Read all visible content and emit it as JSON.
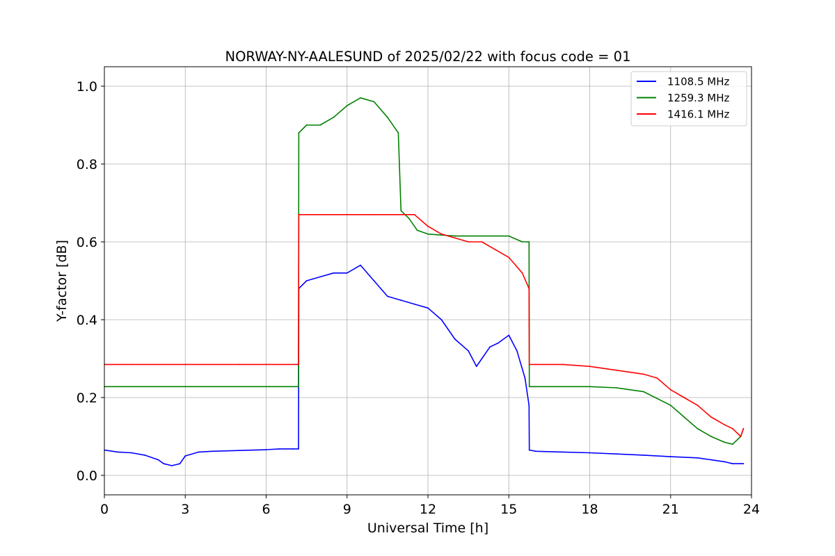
{
  "chart_data": {
    "type": "line",
    "title": "NORWAY-NY-AALESUND of 2025/02/22 with focus code = 01",
    "xlabel": "Universal Time [h]",
    "ylabel": "Y-factor [dB]",
    "xlim": [
      0,
      24
    ],
    "ylim": [
      -0.05,
      1.05
    ],
    "xticks": [
      0,
      3,
      6,
      9,
      12,
      15,
      18,
      21,
      24
    ],
    "yticks": [
      0.0,
      0.2,
      0.4,
      0.6,
      0.8,
      1.0
    ],
    "ytick_labels": [
      "0.0",
      "0.2",
      "0.4",
      "0.6",
      "0.8",
      "1.0"
    ],
    "grid": true,
    "legend_position": "top-right",
    "series": [
      {
        "name": "1108.5 MHz",
        "color": "#0000ff",
        "x": [
          0,
          0.5,
          1,
          1.5,
          2,
          2.2,
          2.5,
          2.8,
          3,
          3.5,
          4,
          5,
          6,
          6.5,
          7,
          7.2,
          7.21,
          7.5,
          8,
          8.5,
          9,
          9.5,
          10,
          10.5,
          11,
          11.5,
          12,
          12.5,
          13,
          13.5,
          13.8,
          14,
          14.3,
          14.6,
          15,
          15.3,
          15.6,
          15.75,
          15.76,
          16,
          17,
          18,
          19,
          20,
          21,
          22,
          22.5,
          23,
          23.3,
          23.6,
          23.7
        ],
        "y": [
          0.065,
          0.06,
          0.058,
          0.052,
          0.04,
          0.03,
          0.025,
          0.03,
          0.05,
          0.06,
          0.062,
          0.064,
          0.066,
          0.068,
          0.068,
          0.068,
          0.48,
          0.5,
          0.51,
          0.52,
          0.52,
          0.54,
          0.5,
          0.46,
          0.45,
          0.44,
          0.43,
          0.4,
          0.35,
          0.32,
          0.28,
          0.3,
          0.33,
          0.34,
          0.36,
          0.32,
          0.25,
          0.18,
          0.065,
          0.062,
          0.06,
          0.058,
          0.055,
          0.052,
          0.048,
          0.045,
          0.04,
          0.035,
          0.03,
          0.03,
          0.03
        ]
      },
      {
        "name": "1259.3 MHz",
        "color": "#008000",
        "x": [
          0,
          1,
          3,
          5,
          7,
          7.2,
          7.21,
          7.5,
          8,
          8.5,
          9,
          9.5,
          10,
          10.5,
          10.9,
          11,
          11.3,
          11.6,
          12,
          13,
          14,
          15,
          15.5,
          15.7,
          15.75,
          15.76,
          16,
          17,
          18,
          19,
          20,
          21,
          21.5,
          22,
          22.5,
          23,
          23.3,
          23.6,
          23.7
        ],
        "y": [
          0.228,
          0.228,
          0.228,
          0.228,
          0.228,
          0.228,
          0.88,
          0.9,
          0.9,
          0.92,
          0.95,
          0.97,
          0.96,
          0.92,
          0.88,
          0.68,
          0.66,
          0.63,
          0.62,
          0.615,
          0.615,
          0.615,
          0.6,
          0.6,
          0.6,
          0.228,
          0.228,
          0.228,
          0.228,
          0.225,
          0.215,
          0.18,
          0.15,
          0.12,
          0.1,
          0.085,
          0.08,
          0.1,
          0.12
        ]
      },
      {
        "name": "1416.1 MHz",
        "color": "#ff0000",
        "x": [
          0,
          1,
          3,
          5,
          7,
          7.2,
          7.21,
          8,
          9,
          10,
          11,
          11.5,
          12,
          12.5,
          13,
          13.5,
          14,
          14.5,
          15,
          15.5,
          15.75,
          15.76,
          16,
          17,
          18,
          19,
          19.5,
          20,
          20.5,
          21,
          21.5,
          22,
          22.5,
          23,
          23.3,
          23.6,
          23.7
        ],
        "y": [
          0.285,
          0.285,
          0.285,
          0.285,
          0.285,
          0.285,
          0.67,
          0.67,
          0.67,
          0.67,
          0.67,
          0.67,
          0.64,
          0.62,
          0.61,
          0.6,
          0.6,
          0.58,
          0.56,
          0.52,
          0.48,
          0.285,
          0.285,
          0.285,
          0.28,
          0.27,
          0.265,
          0.26,
          0.25,
          0.22,
          0.2,
          0.18,
          0.15,
          0.13,
          0.12,
          0.1,
          0.12
        ]
      }
    ]
  }
}
